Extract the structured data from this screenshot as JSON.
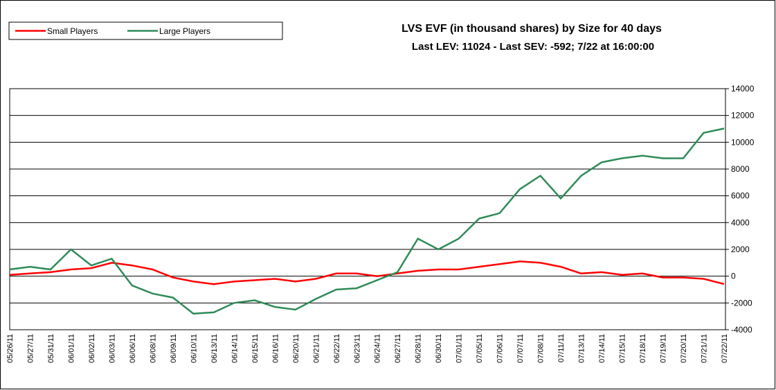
{
  "chart_data": {
    "type": "line",
    "title": "LVS EVF (in thousand shares) by Size for 40 days",
    "subtitle": "Last LEV: 11024 - Last SEV: -592; 7/22 at 16:00:00",
    "categories": [
      "05/26/11",
      "05/27/11",
      "05/31/11",
      "06/01/11",
      "06/02/11",
      "06/03/11",
      "06/06/11",
      "06/08/11",
      "06/09/11",
      "06/10/11",
      "06/13/11",
      "06/14/11",
      "06/15/11",
      "06/16/11",
      "06/20/11",
      "06/21/11",
      "06/22/11",
      "06/23/11",
      "06/24/11",
      "06/27/11",
      "06/28/11",
      "06/30/11",
      "07/01/11",
      "07/05/11",
      "07/06/11",
      "07/07/11",
      "07/08/11",
      "07/11/11",
      "07/13/11",
      "07/14/11",
      "07/15/11",
      "07/18/11",
      "07/19/11",
      "07/20/11",
      "07/21/11",
      "07/22/11"
    ],
    "series": [
      {
        "name": "Small Players",
        "color": "#ff0000",
        "values": [
          100,
          200,
          300,
          500,
          600,
          1000,
          800,
          500,
          -100,
          -400,
          -600,
          -400,
          -300,
          -200,
          -400,
          -200,
          200,
          200,
          0,
          200,
          400,
          500,
          500,
          700,
          900,
          1100,
          1000,
          700,
          200,
          300,
          100,
          200,
          -100,
          -100,
          -200,
          -592
        ]
      },
      {
        "name": "Large Players",
        "color": "#2e8b57",
        "values": [
          500,
          700,
          500,
          2000,
          800,
          1300,
          -700,
          -1300,
          -1600,
          -2800,
          -2700,
          -2000,
          -1800,
          -2300,
          -2500,
          -1700,
          -1000,
          -900,
          -300,
          300,
          2800,
          2000,
          2800,
          4300,
          4700,
          6500,
          7500,
          5800,
          7500,
          8500,
          8800,
          9000,
          8800,
          8800,
          10700,
          11024
        ]
      }
    ],
    "ylim": [
      -4000,
      14000
    ],
    "yticks": [
      14000,
      12000,
      10000,
      8000,
      6000,
      4000,
      2000,
      0,
      -2000,
      -4000
    ],
    "grid": true,
    "legend": "top-left"
  }
}
